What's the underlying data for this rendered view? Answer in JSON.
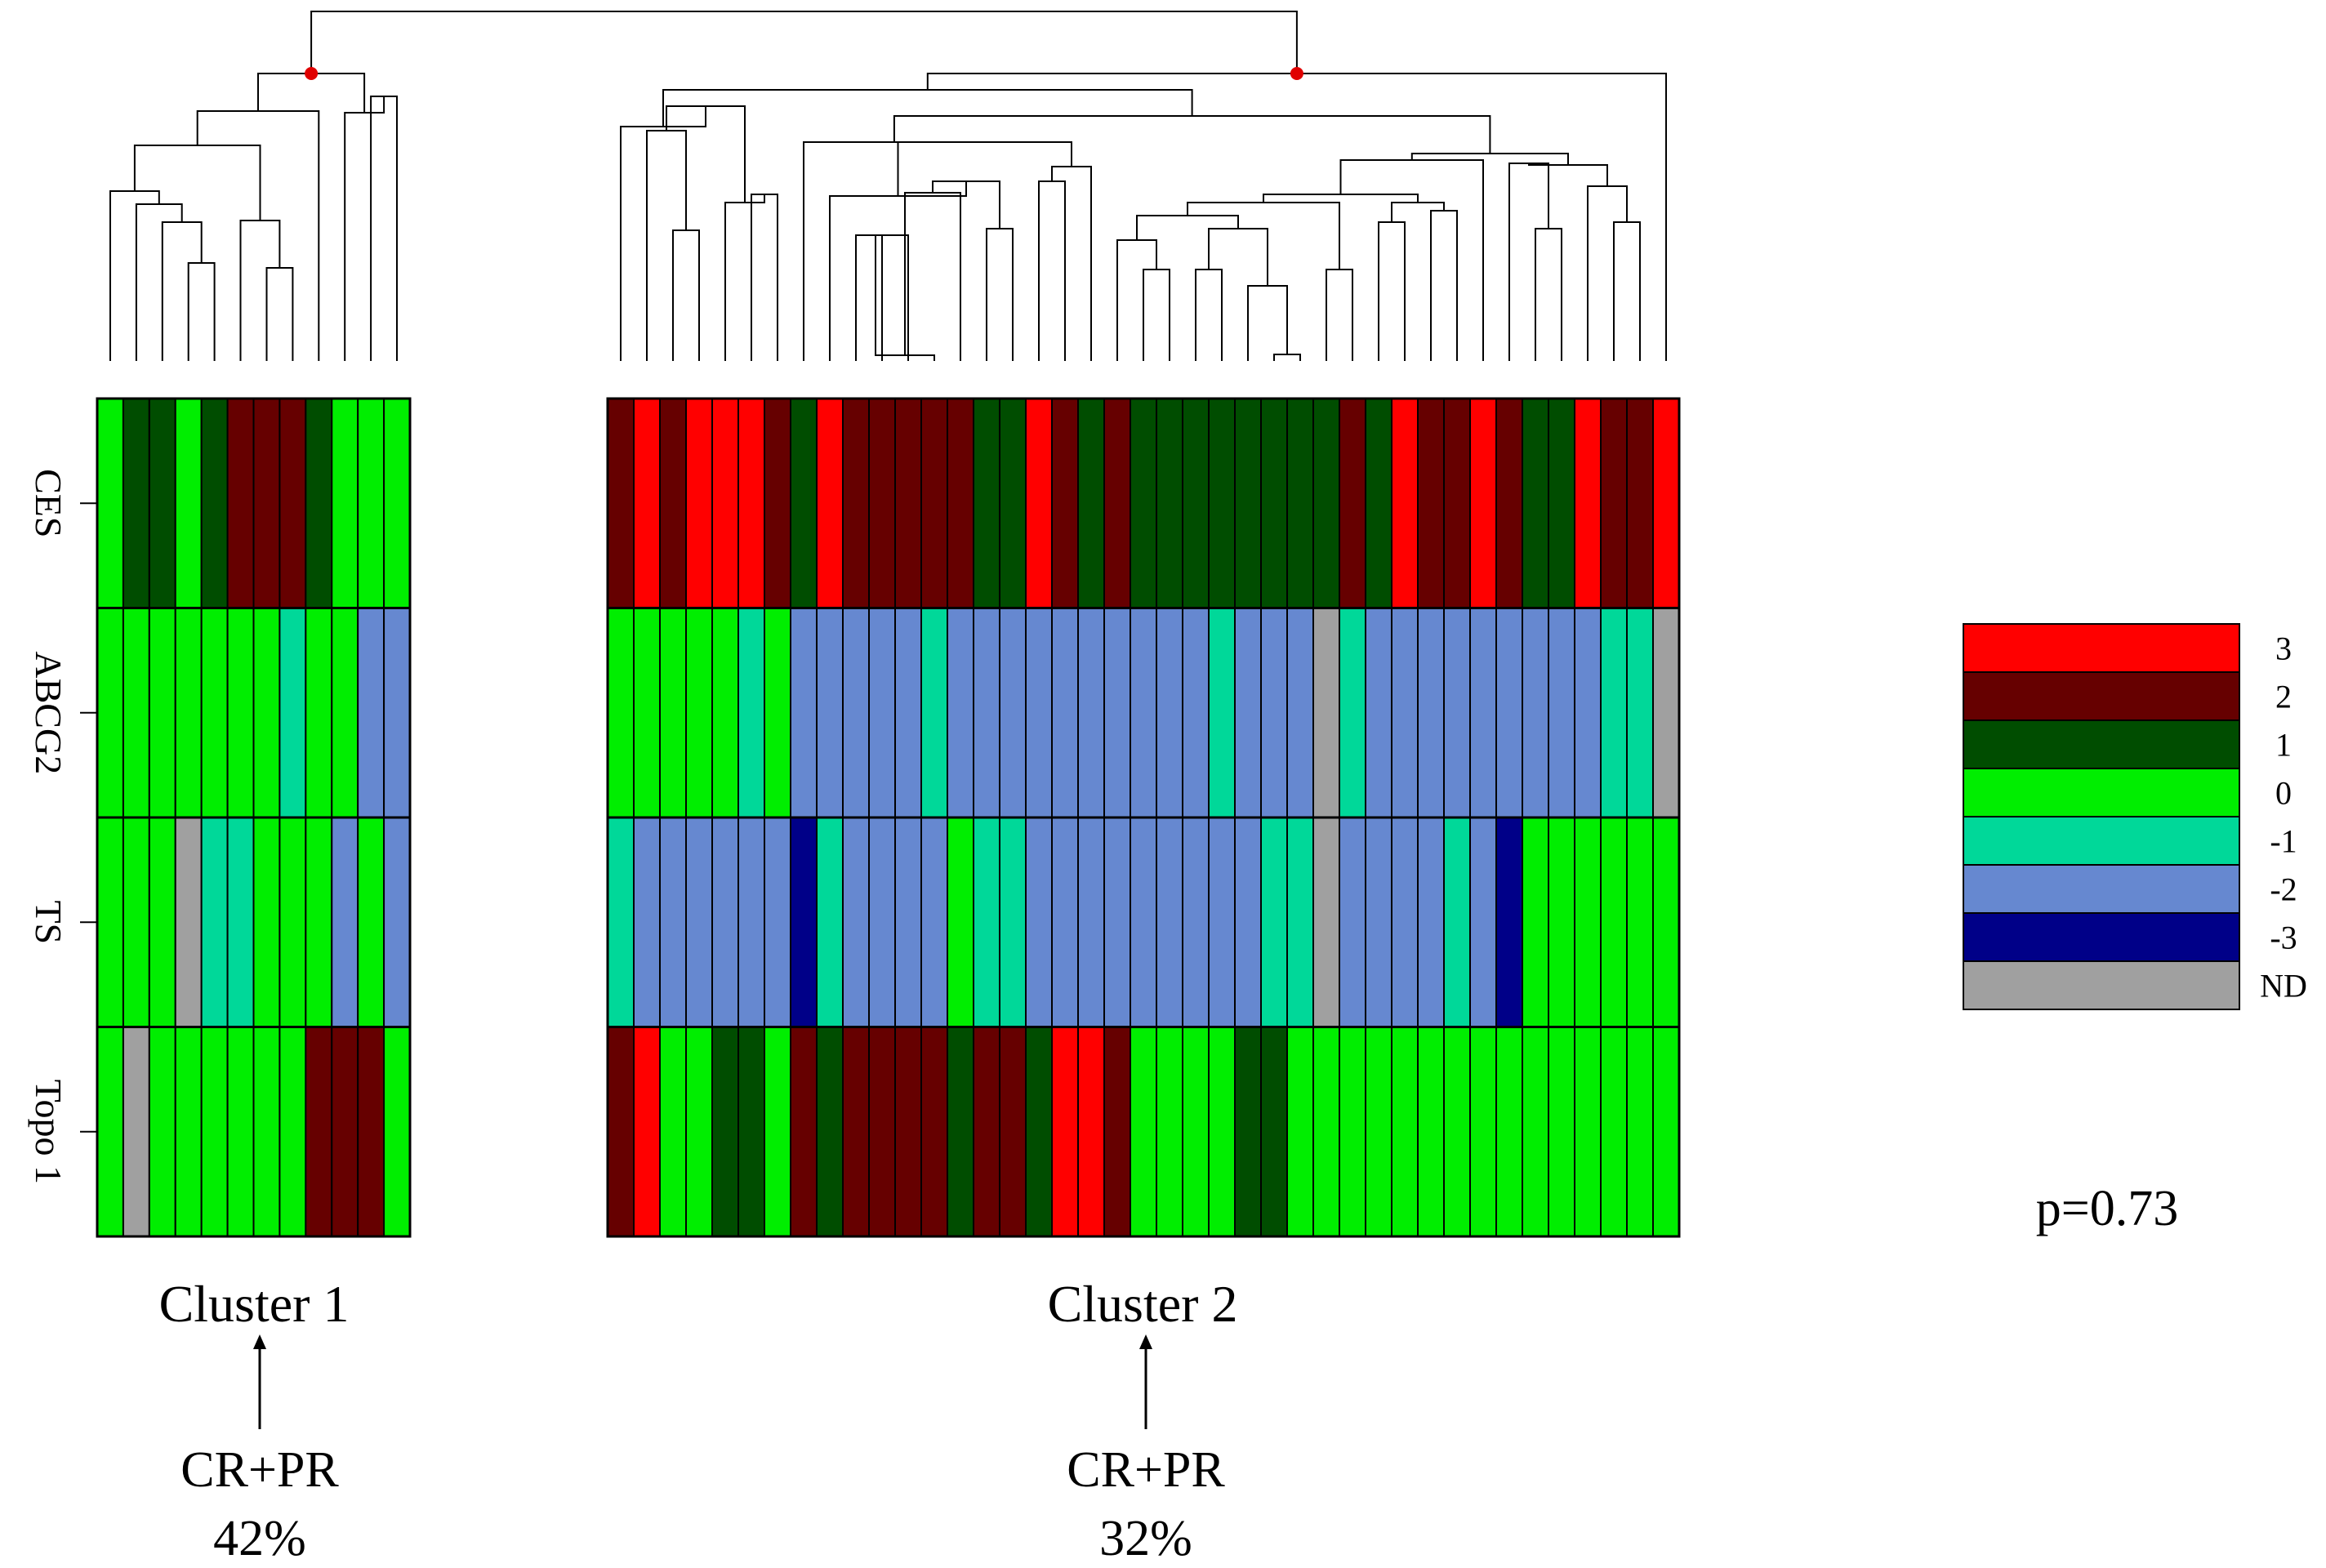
{
  "chart_data": {
    "type": "heatmap",
    "rows": [
      "CES",
      "ABCG2",
      "TS",
      "Topo 1"
    ],
    "clusters": [
      {
        "name": "Cluster 1",
        "response_label": "CR+PR",
        "response_rate": "42%",
        "values": [
          [
            "0",
            "1",
            "1",
            "0",
            "1",
            "2",
            "2",
            "2",
            "1",
            "0",
            "0",
            "0"
          ],
          [
            "0",
            "0",
            "0",
            "0",
            "0",
            "0",
            "0",
            "-1",
            "0",
            "0",
            "-2",
            "-2"
          ],
          [
            "0",
            "0",
            "0",
            "ND",
            "-1",
            "-1",
            "0",
            "0",
            "0",
            "-2",
            "0",
            "-2"
          ],
          [
            "0",
            "ND",
            "0",
            "0",
            "0",
            "0",
            "0",
            "0",
            "2",
            "2",
            "2",
            "0"
          ]
        ]
      },
      {
        "name": "Cluster 2",
        "response_label": "CR+PR",
        "response_rate": "32%",
        "values": [
          [
            "2",
            "3",
            "2",
            "3",
            "3",
            "3",
            "2",
            "1",
            "3",
            "2",
            "2",
            "2",
            "2",
            "2",
            "1",
            "1",
            "3",
            "2",
            "1",
            "2",
            "1",
            "1",
            "1",
            "1",
            "1",
            "1",
            "1",
            "1",
            "2",
            "1",
            "3",
            "2",
            "2",
            "3",
            "2",
            "1",
            "1",
            "3",
            "2",
            "2",
            "3"
          ],
          [
            "0",
            "0",
            "0",
            "0",
            "0",
            "-1",
            "0",
            "-2",
            "-2",
            "-2",
            "-2",
            "-2",
            "-1",
            "-2",
            "-2",
            "-2",
            "-2",
            "-2",
            "-2",
            "-2",
            "-2",
            "-2",
            "-2",
            "-1",
            "-2",
            "-2",
            "-2",
            "ND",
            "-1",
            "-2",
            "-2",
            "-2",
            "-2",
            "-2",
            "-2",
            "-2",
            "-2",
            "-2",
            "-1",
            "-1",
            "ND"
          ],
          [
            "-1",
            "-2",
            "-2",
            "-2",
            "-2",
            "-2",
            "-2",
            "-3",
            "-1",
            "-2",
            "-2",
            "-2",
            "-2",
            "0",
            "-1",
            "-1",
            "-2",
            "-2",
            "-2",
            "-2",
            "-2",
            "-2",
            "-2",
            "-2",
            "-2",
            "-1",
            "-1",
            "ND",
            "-2",
            "-2",
            "-2",
            "-2",
            "-1",
            "-2",
            "-3",
            "0",
            "0",
            "0",
            "0",
            "0",
            "0"
          ],
          [
            "2",
            "3",
            "0",
            "0",
            "1",
            "1",
            "0",
            "2",
            "1",
            "2",
            "2",
            "2",
            "2",
            "1",
            "2",
            "2",
            "1",
            "3",
            "3",
            "2",
            "0",
            "0",
            "0",
            "0",
            "1",
            "1",
            "0",
            "0",
            "0",
            "0",
            "0",
            "0",
            "0",
            "0",
            "0",
            "0",
            "0",
            "0",
            "0",
            "0",
            "0"
          ]
        ]
      }
    ],
    "legend": [
      {
        "label": "3",
        "color": "#ff0000"
      },
      {
        "label": "2",
        "color": "#660000"
      },
      {
        "label": "1",
        "color": "#004d00"
      },
      {
        "label": "0",
        "color": "#00ee00"
      },
      {
        "label": "-1",
        "color": "#00d899"
      },
      {
        "label": "-2",
        "color": "#6688d0"
      },
      {
        "label": "-3",
        "color": "#000088"
      },
      {
        "label": "ND",
        "color": "#a0a0a0"
      }
    ],
    "p_value": "p=0.73"
  }
}
